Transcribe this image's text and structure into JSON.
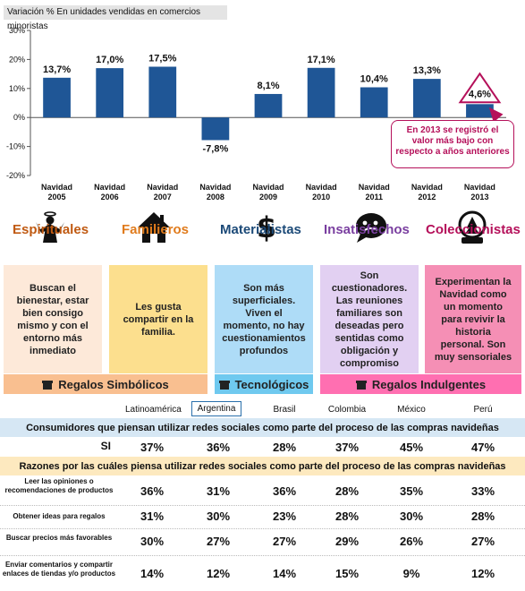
{
  "chart_data": {
    "type": "bar",
    "title": "Variación % En unidades vendidas en comercios minoristas",
    "categories": [
      "Navidad 2005",
      "Navidad 2006",
      "Navidad 2007",
      "Navidad 2008",
      "Navidad 2009",
      "Navidad 2010",
      "Navidad 2011",
      "Navidad 2012",
      "Navidad 2013"
    ],
    "category_lines": [
      [
        "Navidad",
        "2005"
      ],
      [
        "Navidad",
        "2006"
      ],
      [
        "Navidad",
        "2007"
      ],
      [
        "Navidad",
        "2008"
      ],
      [
        "Navidad",
        "2009"
      ],
      [
        "Navidad",
        "2010"
      ],
      [
        "Navidad",
        "2011"
      ],
      [
        "Navidad",
        "2012"
      ],
      [
        "Navidad",
        "2013"
      ]
    ],
    "values": [
      13.7,
      17.0,
      17.5,
      -7.8,
      8.1,
      17.1,
      10.4,
      13.3,
      4.6
    ],
    "data_labels": [
      "13,7%",
      "17,0%",
      "17,5%",
      "-7,8%",
      "8,1%",
      "17,1%",
      "10,4%",
      "13,3%",
      "4,6%"
    ],
    "ylim": [
      -20,
      30
    ],
    "yticks": [
      -20,
      -10,
      0,
      10,
      20,
      30
    ],
    "ytick_labels": [
      "-20%",
      "-10%",
      "0%",
      "10%",
      "20%",
      "30%"
    ],
    "grid": false,
    "bar_color": "#1f5696",
    "highlight_color": "#b5105a"
  },
  "callout": {
    "text": "En 2013 se registró el valor más bajo con respecto a años anteriores"
  },
  "segments": [
    {
      "name": "Espirituales",
      "icon": "angel-icon",
      "color": "#c05a12",
      "box_bg": "#fde9d9",
      "desc": "Buscan el bienestar, estar bien consigo mismo y con el entorno más inmediato"
    },
    {
      "name": "Familieros",
      "icon": "house-icon",
      "color": "#e07b1c",
      "box_bg": "#fcdf8e",
      "desc": "Les gusta compartir en la familia."
    },
    {
      "name": "Materialistas",
      "icon": "dollar-icon",
      "color": "#1c4a78",
      "box_bg": "#aedcf7",
      "desc": "Son más superficiales. Viven el momento, no hay cuestionamientos profundos"
    },
    {
      "name": "Insatisfechos",
      "icon": "speech-bubble-icon",
      "color": "#7a3fa0",
      "box_bg": "#e2d0f2",
      "desc": "Son cuestionadores. Las reuniones familiares son deseadas pero sentidas como obligación y compromiso"
    },
    {
      "name": "Coleccionistas",
      "icon": "snow-globe-icon",
      "color": "#b5105a",
      "box_bg": "#f58fb5",
      "desc": "Experimentan la Navidad como un momento para revivir la historia personal. Son muy sensoriales"
    }
  ],
  "gift_bands": [
    {
      "label": "Regalos Simbólicos",
      "bg": "#f9bf90"
    },
    {
      "label": "Tecnológicos",
      "bg": "#6fc9ef"
    },
    {
      "label": "Regalos Indulgentes",
      "bg": "#ff6fb1"
    }
  ],
  "countries": [
    "Latinoamérica",
    "Argentina",
    "Brasil",
    "Colombia",
    "México",
    "Perú"
  ],
  "selected_country": "Argentina",
  "table1": {
    "header": "Consumidores que piensan utilizar redes sociales como parte del proceso de las compras navideñas",
    "header_bg": "#d6e7f4",
    "rows": [
      {
        "label": "SI",
        "values": [
          "37%",
          "36%",
          "28%",
          "37%",
          "45%",
          "47%"
        ]
      }
    ]
  },
  "table2": {
    "header": "Razones por las cuáles piensa utilizar redes sociales como parte del proceso de las compras navideñas",
    "header_bg": "#fde9bf",
    "rows": [
      {
        "label": "Leer las opiniones o recomendaciones de productos",
        "values": [
          "36%",
          "31%",
          "36%",
          "28%",
          "35%",
          "33%"
        ]
      },
      {
        "label": "Obtener ideas para regalos",
        "values": [
          "31%",
          "30%",
          "23%",
          "28%",
          "30%",
          "28%"
        ]
      },
      {
        "label": "Buscar precios más favorables",
        "values": [
          "30%",
          "27%",
          "27%",
          "29%",
          "26%",
          "27%"
        ]
      },
      {
        "label": "Enviar comentarios y compartir enlaces de tiendas y/o productos",
        "values": [
          "14%",
          "12%",
          "14%",
          "15%",
          "9%",
          "12%"
        ]
      }
    ]
  }
}
